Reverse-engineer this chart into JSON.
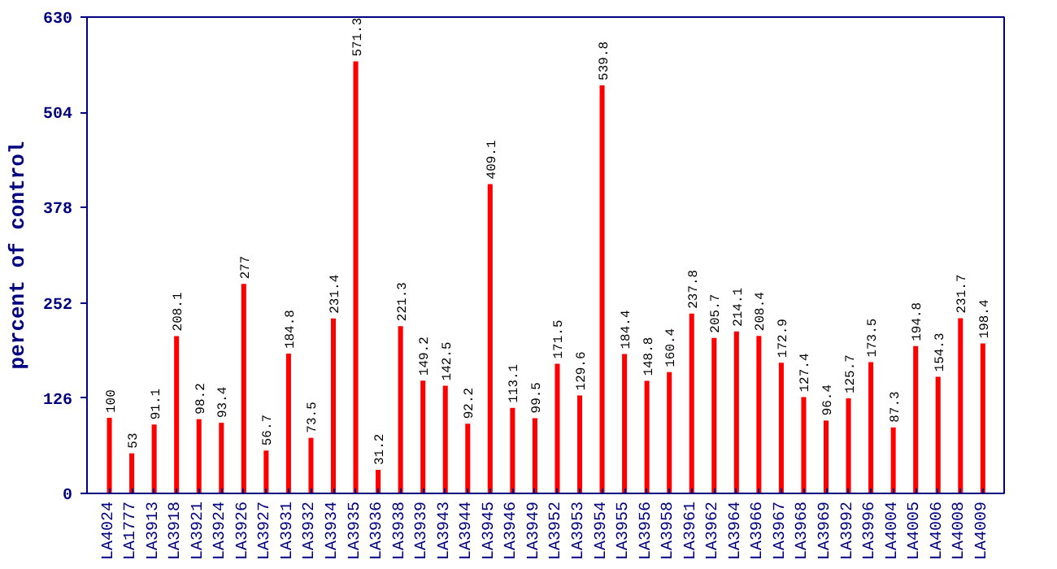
{
  "chart_data": {
    "type": "bar",
    "ylabel": "percent of control",
    "categories": [
      "LA4024",
      "LA1777",
      "LA3913",
      "LA3918",
      "LA3921",
      "LA3924",
      "LA3926",
      "LA3927",
      "LA3931",
      "LA3932",
      "LA3934",
      "LA3935",
      "LA3936",
      "LA3938",
      "LA3939",
      "LA3943",
      "LA3944",
      "LA3945",
      "LA3946",
      "LA3949",
      "LA3952",
      "LA3953",
      "LA3954",
      "LA3955",
      "LA3956",
      "LA3958",
      "LA3961",
      "LA3962",
      "LA3964",
      "LA3966",
      "LA3967",
      "LA3968",
      "LA3969",
      "LA3992",
      "LA3996",
      "LA4004",
      "LA4005",
      "LA4006",
      "LA4008",
      "LA4009"
    ],
    "values": [
      100,
      53,
      91.1,
      208.1,
      98.2,
      93.4,
      277,
      56.7,
      184.8,
      73.5,
      231.4,
      571.3,
      31.2,
      221.3,
      149.2,
      142.5,
      92.2,
      409.1,
      113.1,
      99.5,
      171.5,
      129.6,
      539.8,
      184.4,
      148.8,
      160.4,
      237.8,
      205.7,
      214.1,
      208.4,
      172.9,
      127.4,
      96.4,
      125.7,
      173.5,
      87.3,
      194.8,
      154.3,
      231.7,
      198.4
    ],
    "value_labels": [
      "100",
      "53",
      "91.1",
      "208.1",
      "98.2",
      "93.4",
      "277",
      "56.7",
      "184.8",
      "73.5",
      "231.4",
      "571.3",
      "31.2",
      "221.3",
      "149.2",
      "142.5",
      "92.2",
      "409.1",
      "113.1",
      "99.5",
      "171.5",
      "129.6",
      "539.8",
      "184.4",
      "148.8",
      "160.4",
      "237.8",
      "205.7",
      "214.1",
      "208.4",
      "172.9",
      "127.4",
      "96.4",
      "125.7",
      "173.5",
      "87.3",
      "194.8",
      "154.3",
      "231.7",
      "198.4"
    ],
    "color": "#ff0000",
    "ylim": [
      0,
      630
    ],
    "yticks": [
      0,
      126,
      252,
      378,
      504,
      630
    ],
    "grid": false
  }
}
